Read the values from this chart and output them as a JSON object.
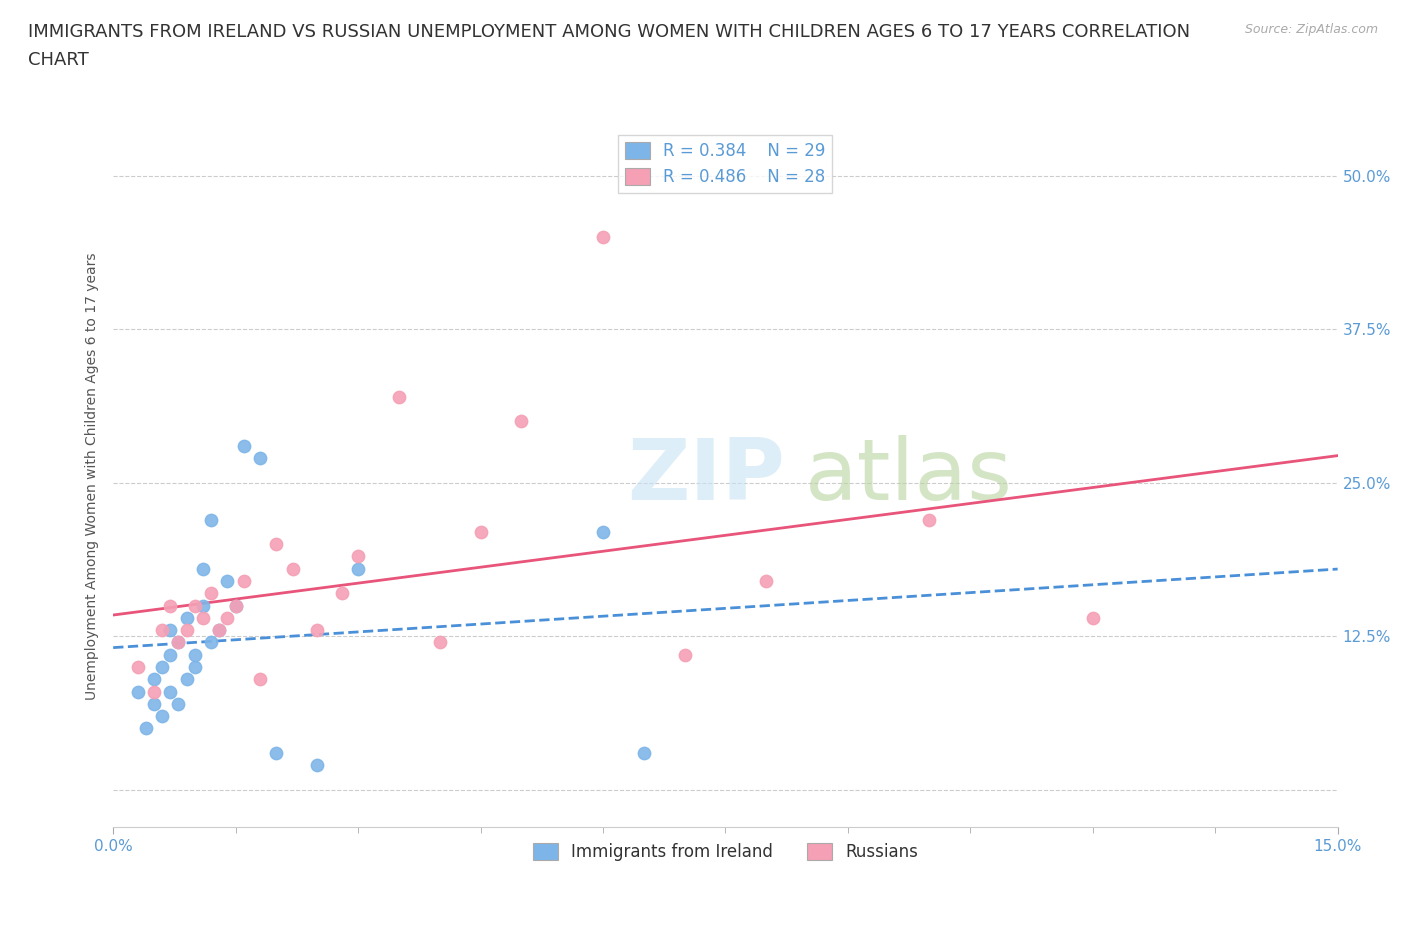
{
  "title_line1": "IMMIGRANTS FROM IRELAND VS RUSSIAN UNEMPLOYMENT AMONG WOMEN WITH CHILDREN AGES 6 TO 17 YEARS CORRELATION",
  "title_line2": "CHART",
  "source_text": "Source: ZipAtlas.com",
  "ylabel": "Unemployment Among Women with Children Ages 6 to 17 years",
  "xlim": [
    0.0,
    0.15
  ],
  "ylim": [
    -0.03,
    0.54
  ],
  "ireland_color": "#7EB5E8",
  "russia_color": "#F5A0B5",
  "ireland_line_color": "#4A90D9",
  "russia_line_color": "#E8547A",
  "ireland_r": 0.384,
  "ireland_n": 29,
  "russia_r": 0.486,
  "russia_n": 28,
  "legend_label_ireland": "Immigrants from Ireland",
  "legend_label_russia": "Russians",
  "ireland_x": [
    0.003,
    0.004,
    0.005,
    0.005,
    0.006,
    0.006,
    0.007,
    0.007,
    0.007,
    0.008,
    0.008,
    0.009,
    0.009,
    0.01,
    0.01,
    0.011,
    0.011,
    0.012,
    0.012,
    0.013,
    0.014,
    0.015,
    0.016,
    0.018,
    0.02,
    0.025,
    0.03,
    0.06,
    0.065
  ],
  "ireland_y": [
    0.08,
    0.05,
    0.07,
    0.09,
    0.06,
    0.1,
    0.08,
    0.11,
    0.13,
    0.07,
    0.12,
    0.09,
    0.14,
    0.1,
    0.11,
    0.15,
    0.18,
    0.12,
    0.22,
    0.13,
    0.17,
    0.15,
    0.28,
    0.27,
    0.03,
    0.02,
    0.18,
    0.21,
    0.03
  ],
  "russia_x": [
    0.003,
    0.005,
    0.006,
    0.007,
    0.008,
    0.009,
    0.01,
    0.011,
    0.012,
    0.013,
    0.014,
    0.015,
    0.016,
    0.018,
    0.02,
    0.022,
    0.025,
    0.028,
    0.03,
    0.035,
    0.04,
    0.045,
    0.05,
    0.06,
    0.07,
    0.08,
    0.1,
    0.12
  ],
  "russia_y": [
    0.1,
    0.08,
    0.13,
    0.15,
    0.12,
    0.13,
    0.15,
    0.14,
    0.16,
    0.13,
    0.14,
    0.15,
    0.17,
    0.09,
    0.2,
    0.18,
    0.13,
    0.16,
    0.19,
    0.32,
    0.12,
    0.21,
    0.3,
    0.45,
    0.11,
    0.17,
    0.22,
    0.14
  ],
  "grid_color": "#CCCCCC",
  "background_color": "#FFFFFF",
  "title_fontsize": 13,
  "axis_tick_fontsize": 11,
  "legend_fontsize": 12
}
